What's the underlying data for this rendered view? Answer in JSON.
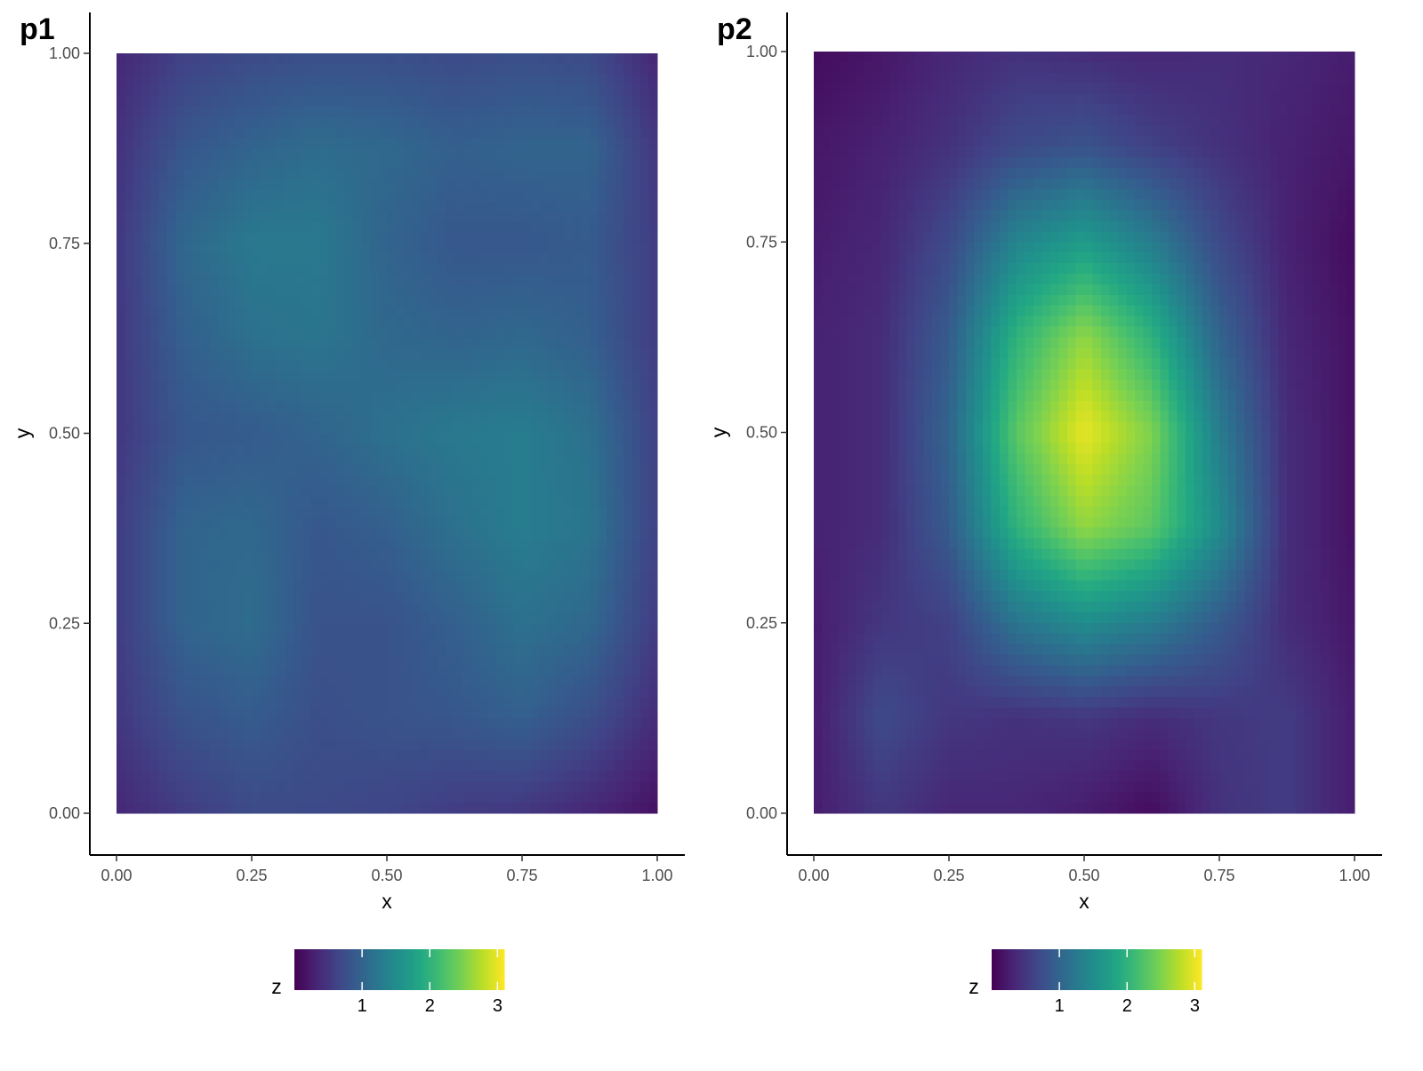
{
  "chart_data": [
    {
      "type": "heatmap",
      "panel_tag": "p1",
      "xlabel": "x",
      "ylabel": "y",
      "xlim": [
        0,
        1
      ],
      "ylim": [
        0,
        1
      ],
      "x_ticks": [
        "0.00",
        "0.25",
        "0.50",
        "0.75",
        "1.00"
      ],
      "y_ticks": [
        "0.00",
        "0.25",
        "0.50",
        "0.75",
        "1.00"
      ],
      "grid": false,
      "colormap": "viridis",
      "color_range": [
        0,
        3.1
      ],
      "legend_position": "bottom",
      "legend": {
        "title": "z",
        "ticks": [
          "1",
          "2",
          "3"
        ],
        "tick_values": [
          1,
          2,
          3
        ]
      },
      "z_grid": {
        "x_centers": [
          0.0,
          0.125,
          0.25,
          0.375,
          0.5,
          0.625,
          0.75,
          0.875,
          1.0
        ],
        "y_centers": [
          0.0,
          0.125,
          0.25,
          0.375,
          0.5,
          0.625,
          0.75,
          0.875,
          1.0
        ],
        "rows": [
          [
            0.35,
            0.55,
            0.7,
            0.7,
            0.65,
            0.55,
            0.5,
            0.35,
            0.15
          ],
          [
            0.5,
            0.8,
            0.9,
            0.75,
            0.8,
            0.85,
            0.95,
            0.75,
            0.4
          ],
          [
            0.55,
            1.0,
            1.1,
            0.8,
            0.8,
            0.95,
            1.15,
            1.05,
            0.55
          ],
          [
            0.55,
            1.0,
            1.05,
            0.85,
            0.95,
            1.15,
            1.3,
            1.2,
            0.6
          ],
          [
            0.5,
            0.85,
            0.9,
            1.0,
            1.15,
            1.25,
            1.3,
            1.15,
            0.6
          ],
          [
            0.5,
            0.95,
            1.15,
            1.2,
            1.05,
            1.0,
            1.05,
            0.95,
            0.55
          ],
          [
            0.5,
            1.05,
            1.25,
            1.25,
            1.0,
            0.85,
            0.85,
            0.9,
            0.55
          ],
          [
            0.45,
            0.85,
            1.0,
            1.1,
            1.05,
            0.95,
            1.0,
            1.0,
            0.5
          ],
          [
            0.35,
            0.6,
            0.7,
            0.75,
            0.75,
            0.7,
            0.75,
            0.7,
            0.35
          ]
        ]
      }
    },
    {
      "type": "heatmap",
      "panel_tag": "p2",
      "xlabel": "x",
      "ylabel": "y",
      "xlim": [
        0,
        1
      ],
      "ylim": [
        0,
        1
      ],
      "x_ticks": [
        "0.00",
        "0.25",
        "0.50",
        "0.75",
        "1.00"
      ],
      "y_ticks": [
        "0.00",
        "0.25",
        "0.50",
        "0.75",
        "1.00"
      ],
      "grid": false,
      "colormap": "viridis",
      "color_range": [
        0,
        3.1
      ],
      "legend_position": "bottom",
      "legend": {
        "title": "z",
        "ticks": [
          "1",
          "2",
          "3"
        ],
        "tick_values": [
          1,
          2,
          3
        ]
      },
      "z_grid": {
        "x_centers": [
          0.0,
          0.125,
          0.25,
          0.375,
          0.5,
          0.625,
          0.75,
          0.875,
          1.0
        ],
        "y_centers": [
          0.0,
          0.125,
          0.25,
          0.375,
          0.5,
          0.625,
          0.75,
          0.875,
          1.0
        ],
        "rows": [
          [
            0.25,
            0.5,
            0.35,
            0.35,
            0.25,
            0.1,
            0.45,
            0.55,
            0.25
          ],
          [
            0.25,
            0.7,
            0.5,
            0.45,
            0.5,
            0.4,
            0.5,
            0.55,
            0.25
          ],
          [
            0.25,
            0.5,
            0.6,
            1.2,
            1.5,
            1.3,
            0.9,
            0.4,
            0.2
          ],
          [
            0.3,
            0.4,
            0.9,
            2.0,
            2.6,
            2.3,
            1.5,
            0.4,
            0.15
          ],
          [
            0.3,
            0.4,
            1.0,
            2.3,
            3.0,
            2.5,
            1.3,
            0.4,
            0.15
          ],
          [
            0.3,
            0.4,
            0.9,
            2.0,
            2.6,
            2.0,
            1.0,
            0.35,
            0.15
          ],
          [
            0.25,
            0.35,
            0.7,
            1.4,
            1.7,
            1.3,
            0.7,
            0.3,
            0.1
          ],
          [
            0.2,
            0.3,
            0.45,
            0.7,
            0.8,
            0.6,
            0.45,
            0.3,
            0.2
          ],
          [
            0.1,
            0.2,
            0.35,
            0.45,
            0.4,
            0.35,
            0.4,
            0.35,
            0.25
          ]
        ]
      }
    }
  ]
}
